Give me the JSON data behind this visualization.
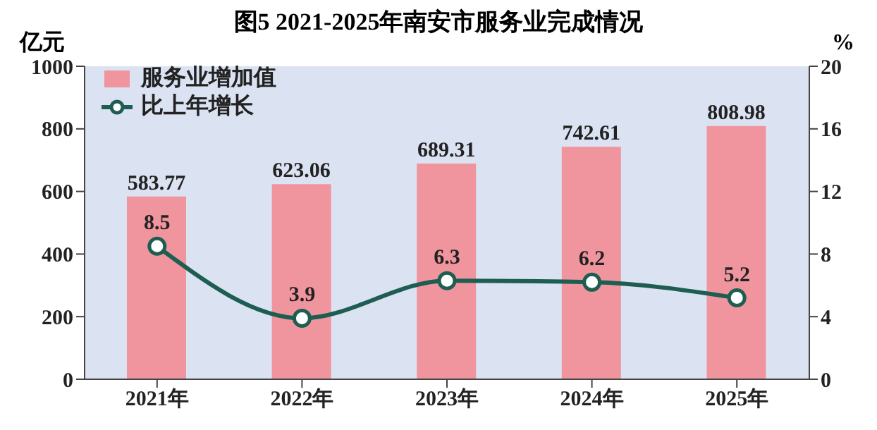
{
  "chart_data": {
    "type": "bar",
    "title": "图5 2021-2025年南安市服务业完成情况",
    "ylabel": "亿元",
    "y2label": "%",
    "categories": [
      "2021年",
      "2022年",
      "2023年",
      "2024年",
      "2025年"
    ],
    "series": [
      {
        "name": "服务业增加值",
        "color": "#f0959e",
        "values": [
          583.77,
          623.06,
          689.31,
          742.61,
          808.98
        ]
      },
      {
        "name": "比上年增长",
        "type": "line",
        "axis": "y2",
        "color": "#1e5e52",
        "values": [
          8.5,
          3.9,
          6.3,
          6.2,
          5.2
        ]
      }
    ],
    "ylim": [
      0,
      1000
    ],
    "yticks": [
      0,
      200,
      400,
      600,
      800,
      1000
    ],
    "y2lim": [
      0,
      20
    ],
    "y2ticks": [
      0,
      4,
      8,
      12,
      16,
      20
    ],
    "data_labels": true,
    "legend": "top left",
    "marker": "circle",
    "line_style": "solid"
  }
}
